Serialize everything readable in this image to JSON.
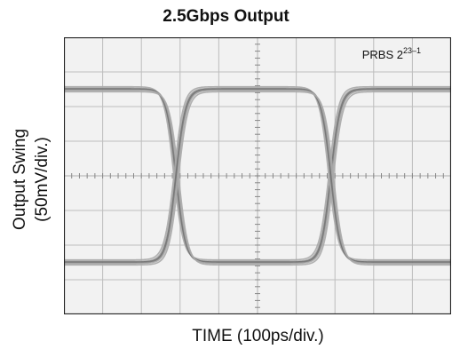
{
  "chart_data": {
    "type": "line",
    "title": "2.5Gbps Output",
    "xlabel": "TIME (100ps/div.)",
    "ylabel_line1": "Output Swing",
    "ylabel_line2": "(50mV/div.)",
    "annotation": {
      "base": "PRBS 2",
      "exponent": "23–1"
    },
    "grid": true,
    "xlim": [
      0,
      10
    ],
    "ylim": [
      -4,
      4
    ],
    "high_level": 2.5,
    "low_level": -2.5,
    "crossings": [
      2.9,
      6.9
    ],
    "transition_halfwidth": 0.45,
    "series": [
      {
        "values": [
          2.5,
          -2.5,
          2.5
        ]
      },
      {
        "values": [
          -2.5,
          2.5,
          -2.5
        ]
      }
    ]
  },
  "colors": {
    "background": "#f2f2f2",
    "grid": "#bdbdbd",
    "trace": "#707070",
    "trace_light": "#a8a8a8",
    "axis": "#222222"
  }
}
